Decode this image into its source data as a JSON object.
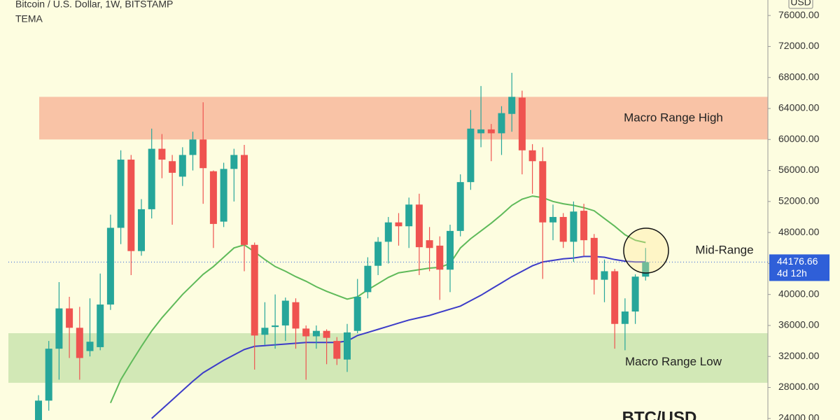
{
  "chart_data": {
    "type": "candlestick",
    "title": "Bitcoin / U.S. Dollar, 1W, BITSTAMP",
    "subtitle": "TEMA",
    "currency": "USD",
    "up_color": "#26a69a",
    "down_color": "#ef5350",
    "open": [
      23000,
      26300,
      33000,
      38200,
      35700,
      32700,
      33200,
      38700,
      48600,
      57400,
      45600,
      51000,
      58800,
      57200,
      55200,
      58000,
      60000,
      55900,
      49400,
      56200,
      58000,
      46400,
      34800,
      35800,
      36000,
      39000,
      35600,
      34600,
      35300,
      34000,
      31600,
      35300,
      40300,
      43700,
      46800,
      49300,
      48800,
      51600,
      47000,
      46300,
      43200,
      48200,
      54500,
      60800,
      61300,
      60800,
      63300,
      65400,
      58600,
      57200,
      49300,
      50000,
      46800,
      50800,
      47300,
      41900,
      43000,
      36200,
      37800,
      42300
    ],
    "high": [
      27000,
      34000,
      41600,
      39700,
      38400,
      39500,
      42700,
      50300,
      58600,
      58000,
      52300,
      61400,
      60700,
      58000,
      59000,
      61000,
      64800,
      56000,
      57000,
      58800,
      59300,
      46700,
      39000,
      40000,
      39600,
      39500,
      36000,
      36000,
      35500,
      34500,
      36200,
      42000,
      44800,
      47400,
      50000,
      50500,
      52500,
      53000,
      48700,
      47500,
      49000,
      55500,
      63800,
      66900,
      62000,
      64300,
      68600,
      66300,
      59400,
      59000,
      51600,
      50500,
      52000,
      51700,
      47800,
      44500,
      43300,
      39500,
      42600,
      46000
    ],
    "low": [
      22000,
      25000,
      29000,
      31800,
      29000,
      32000,
      32800,
      38000,
      46500,
      42500,
      45000,
      49800,
      55000,
      49000,
      54000,
      56000,
      51700,
      46000,
      48700,
      52000,
      43000,
      30300,
      33500,
      33000,
      34000,
      33000,
      29000,
      33000,
      31000,
      30900,
      30000,
      35000,
      39500,
      42500,
      44000,
      46300,
      46000,
      42500,
      43000,
      39300,
      40300,
      47500,
      53500,
      59000,
      57200,
      58000,
      61000,
      55500,
      53000,
      42000,
      47000,
      46000,
      44200,
      45000,
      40000,
      39000,
      33000,
      32800,
      36200,
      41800
    ],
    "close": [
      26300,
      33000,
      38200,
      35700,
      31800,
      33900,
      38700,
      48600,
      57400,
      45600,
      51000,
      58800,
      57400,
      55700,
      58000,
      60000,
      56300,
      49100,
      56200,
      58000,
      46400,
      34700,
      35700,
      36000,
      39200,
      35600,
      34600,
      35300,
      34400,
      31700,
      35100,
      39700,
      43700,
      46800,
      49300,
      48800,
      51600,
      46100,
      46000,
      43200,
      48200,
      54500,
      61400,
      61300,
      60800,
      63400,
      65500,
      58600,
      57200,
      49300,
      50000,
      46800,
      50700,
      47000,
      41900,
      43000,
      36200,
      37800,
      42300,
      44170
    ],
    "lines": [
      {
        "color": "#5fba5a",
        "values": [
          null,
          null,
          null,
          null,
          null,
          null,
          null,
          26000,
          29000,
          31200,
          33300,
          35300,
          37000,
          38500,
          40000,
          41300,
          42600,
          43600,
          44800,
          46000,
          46400,
          45500,
          44500,
          43600,
          43000,
          42300,
          41700,
          41000,
          40400,
          39900,
          39400,
          39700,
          40600,
          41400,
          42200,
          42800,
          43000,
          43200,
          43400,
          43500,
          44000,
          46000,
          47200,
          48200,
          49200,
          50300,
          51500,
          52300,
          52700,
          52500,
          52000,
          51700,
          51500,
          51200,
          50800,
          49800,
          48800,
          47700,
          47000,
          46700
        ]
      },
      {
        "color": "#3c3cc8",
        "values": [
          null,
          null,
          null,
          null,
          null,
          null,
          null,
          null,
          null,
          null,
          null,
          24000,
          25200,
          26400,
          27600,
          28800,
          29900,
          30700,
          31500,
          32200,
          32900,
          33300,
          33400,
          33500,
          33600,
          33700,
          33800,
          33800,
          33800,
          33800,
          34000,
          34700,
          35100,
          35500,
          35900,
          36300,
          36700,
          37000,
          37300,
          37700,
          38100,
          38500,
          39200,
          39900,
          40700,
          41500,
          42300,
          43000,
          43700,
          44200,
          44400,
          44600,
          44700,
          44900,
          44900,
          44800,
          44500,
          44300,
          44200,
          44200
        ]
      }
    ],
    "ylim": [
      23800,
      78000
    ],
    "yticks": [
      {
        "value": 24000,
        "label": "24000.00"
      },
      {
        "value": 28000,
        "label": "28000.00"
      },
      {
        "value": 32000,
        "label": "32000.00"
      },
      {
        "value": 36000,
        "label": "36000.00"
      },
      {
        "value": 40000,
        "label": "40000.00"
      },
      {
        "value": 44000,
        "label": "44000.00"
      },
      {
        "value": 48000,
        "label": "48000.00"
      },
      {
        "value": 52000,
        "label": "52000.00"
      },
      {
        "value": 56000,
        "label": "56000.00"
      },
      {
        "value": 60000,
        "label": "60000.00"
      },
      {
        "value": 64000,
        "label": "64000.00"
      },
      {
        "value": 68000,
        "label": "68000.00"
      },
      {
        "value": 72000,
        "label": "72000.00"
      },
      {
        "value": 76000,
        "label": "76000.00"
      }
    ],
    "last_price": 44176.66,
    "last_price_color": "#2f5fd8",
    "countdown": "4d 12h",
    "zones": [
      {
        "label": "Macro Range High",
        "range": [
          60000,
          65500
        ],
        "color": "#f9c3a6"
      },
      {
        "label": "Macro Range Low",
        "range": [
          28600,
          35000
        ],
        "color": "#d2e8b6"
      }
    ],
    "annotation": "Mid-Range",
    "watermark": "BTC/USD"
  }
}
